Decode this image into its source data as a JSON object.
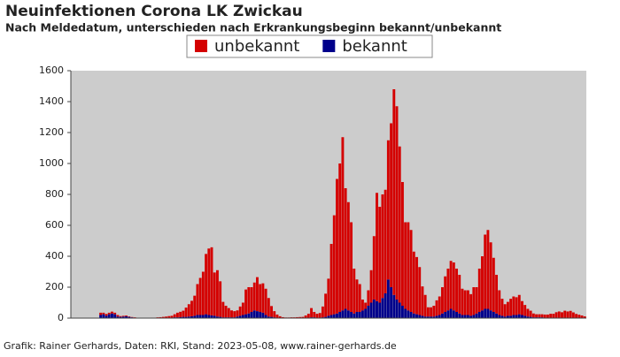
{
  "chart_data": {
    "type": "stacked_bar",
    "title": "Neuinfektionen Corona LK Zwickau",
    "subtitle": "Nach Meldedatum, unterschieden nach Erkrankungsbeginn bekannt/unbekannt",
    "footer": "Grafik: Rainer Gerhards, Daten: RKI, Stand: 2023-05-08, www.rainer-gerhards.de",
    "categories": [
      null,
      null,
      null,
      null,
      null,
      null,
      null,
      null,
      null,
      null,
      null,
      null,
      null,
      null,
      null,
      null,
      null,
      null,
      null,
      null,
      null,
      null,
      null,
      null,
      null,
      null,
      null,
      null,
      null,
      null,
      null,
      null,
      null,
      null,
      null,
      null,
      null,
      null,
      null,
      null,
      null,
      null,
      null,
      null,
      null,
      null,
      null,
      null,
      null,
      null,
      null,
      null,
      null,
      null,
      null,
      null,
      null,
      null,
      null,
      null,
      null,
      null,
      null,
      null,
      null,
      null,
      null,
      null,
      null,
      null,
      null,
      null,
      null,
      null,
      null,
      null,
      null,
      null,
      null,
      null,
      null,
      null,
      null,
      null,
      null,
      null,
      null,
      null,
      null,
      null,
      null,
      null,
      null,
      null,
      null,
      null,
      null,
      null,
      null,
      null,
      null,
      null,
      null,
      null,
      null,
      null,
      null,
      null,
      null,
      null,
      null,
      null,
      null,
      null,
      null,
      null,
      null,
      null,
      null,
      null,
      null,
      null,
      null,
      null,
      null,
      null,
      null,
      null,
      null,
      null,
      null,
      null,
      null,
      null,
      null,
      null,
      null,
      null,
      null,
      null,
      null,
      null,
      null,
      null,
      null,
      null,
      null,
      null,
      null,
      null,
      null,
      null,
      null,
      null,
      null,
      null,
      null,
      null,
      null,
      null,
      null,
      null,
      null,
      null,
      null,
      null,
      null,
      null,
      null,
      null,
      null,
      null,
      null,
      null,
      null,
      null,
      null,
      null,
      null,
      null,
      null
    ],
    "series": [
      {
        "name": "unbekannt",
        "color": "#d40000",
        "values": [
          0,
          0,
          0,
          0,
          0,
          0,
          0,
          0,
          0,
          0,
          15,
          10,
          12,
          10,
          12,
          10,
          10,
          5,
          5,
          5,
          3,
          2,
          2,
          1,
          2,
          2,
          1,
          2,
          3,
          3,
          4,
          5,
          6,
          8,
          10,
          12,
          20,
          30,
          35,
          40,
          60,
          80,
          100,
          130,
          200,
          240,
          280,
          390,
          430,
          440,
          280,
          300,
          230,
          100,
          75,
          60,
          45,
          40,
          40,
          60,
          80,
          160,
          170,
          160,
          180,
          220,
          180,
          190,
          170,
          120,
          70,
          40,
          20,
          10,
          5,
          3,
          3,
          4,
          4,
          5,
          6,
          6,
          15,
          25,
          60,
          35,
          25,
          30,
          70,
          150,
          240,
          460,
          640,
          870,
          960,
          1120,
          780,
          700,
          580,
          290,
          210,
          180,
          70,
          40,
          100,
          210,
          410,
          700,
          620,
          670,
          670,
          900,
          1060,
          1330,
          1250,
          1010,
          800,
          560,
          570,
          530,
          400,
          370,
          310,
          190,
          140,
          60,
          60,
          70,
          100,
          120,
          170,
          230,
          270,
          310,
          310,
          280,
          250,
          170,
          160,
          160,
          140,
          180,
          170,
          280,
          350,
          480,
          510,
          440,
          350,
          250,
          160,
          110,
          80,
          90,
          110,
          120,
          115,
          125,
          90,
          70,
          50,
          40,
          25,
          20,
          20,
          20,
          20,
          20,
          25,
          25,
          35,
          40,
          35,
          45,
          40,
          45,
          35,
          25,
          20,
          15,
          10
        ]
      },
      {
        "name": "bekannt",
        "color": "#00008b",
        "values": [
          0,
          0,
          0,
          0,
          0,
          0,
          0,
          0,
          0,
          0,
          20,
          25,
          15,
          25,
          30,
          25,
          10,
          8,
          10,
          12,
          8,
          5,
          3,
          0,
          0,
          0,
          0,
          0,
          0,
          0,
          1,
          1,
          2,
          2,
          3,
          3,
          5,
          5,
          6,
          8,
          8,
          10,
          12,
          15,
          20,
          20,
          20,
          25,
          20,
          18,
          15,
          10,
          8,
          5,
          5,
          5,
          5,
          5,
          10,
          15,
          20,
          25,
          30,
          40,
          50,
          45,
          40,
          35,
          20,
          10,
          8,
          5,
          3,
          2,
          1,
          1,
          1,
          1,
          1,
          1,
          1,
          2,
          2,
          3,
          5,
          5,
          3,
          3,
          5,
          8,
          15,
          20,
          25,
          30,
          40,
          50,
          60,
          50,
          40,
          30,
          40,
          40,
          50,
          60,
          80,
          100,
          120,
          110,
          100,
          130,
          160,
          250,
          200,
          150,
          120,
          100,
          80,
          60,
          50,
          40,
          30,
          25,
          20,
          15,
          10,
          10,
          10,
          10,
          15,
          20,
          30,
          40,
          50,
          60,
          50,
          40,
          30,
          20,
          20,
          20,
          15,
          20,
          30,
          40,
          50,
          60,
          60,
          50,
          40,
          30,
          20,
          15,
          10,
          15,
          15,
          20,
          20,
          25,
          20,
          15,
          10,
          8,
          5,
          5,
          5,
          5,
          3,
          3,
          3,
          3,
          3,
          3,
          3,
          3,
          3,
          2,
          2,
          2,
          2,
          2,
          1
        ]
      }
    ],
    "ylim": [
      0,
      1600
    ],
    "yticks": [
      0,
      200,
      400,
      600,
      800,
      1000,
      1200,
      1400,
      1600
    ],
    "plot_background": "#cccccc"
  }
}
